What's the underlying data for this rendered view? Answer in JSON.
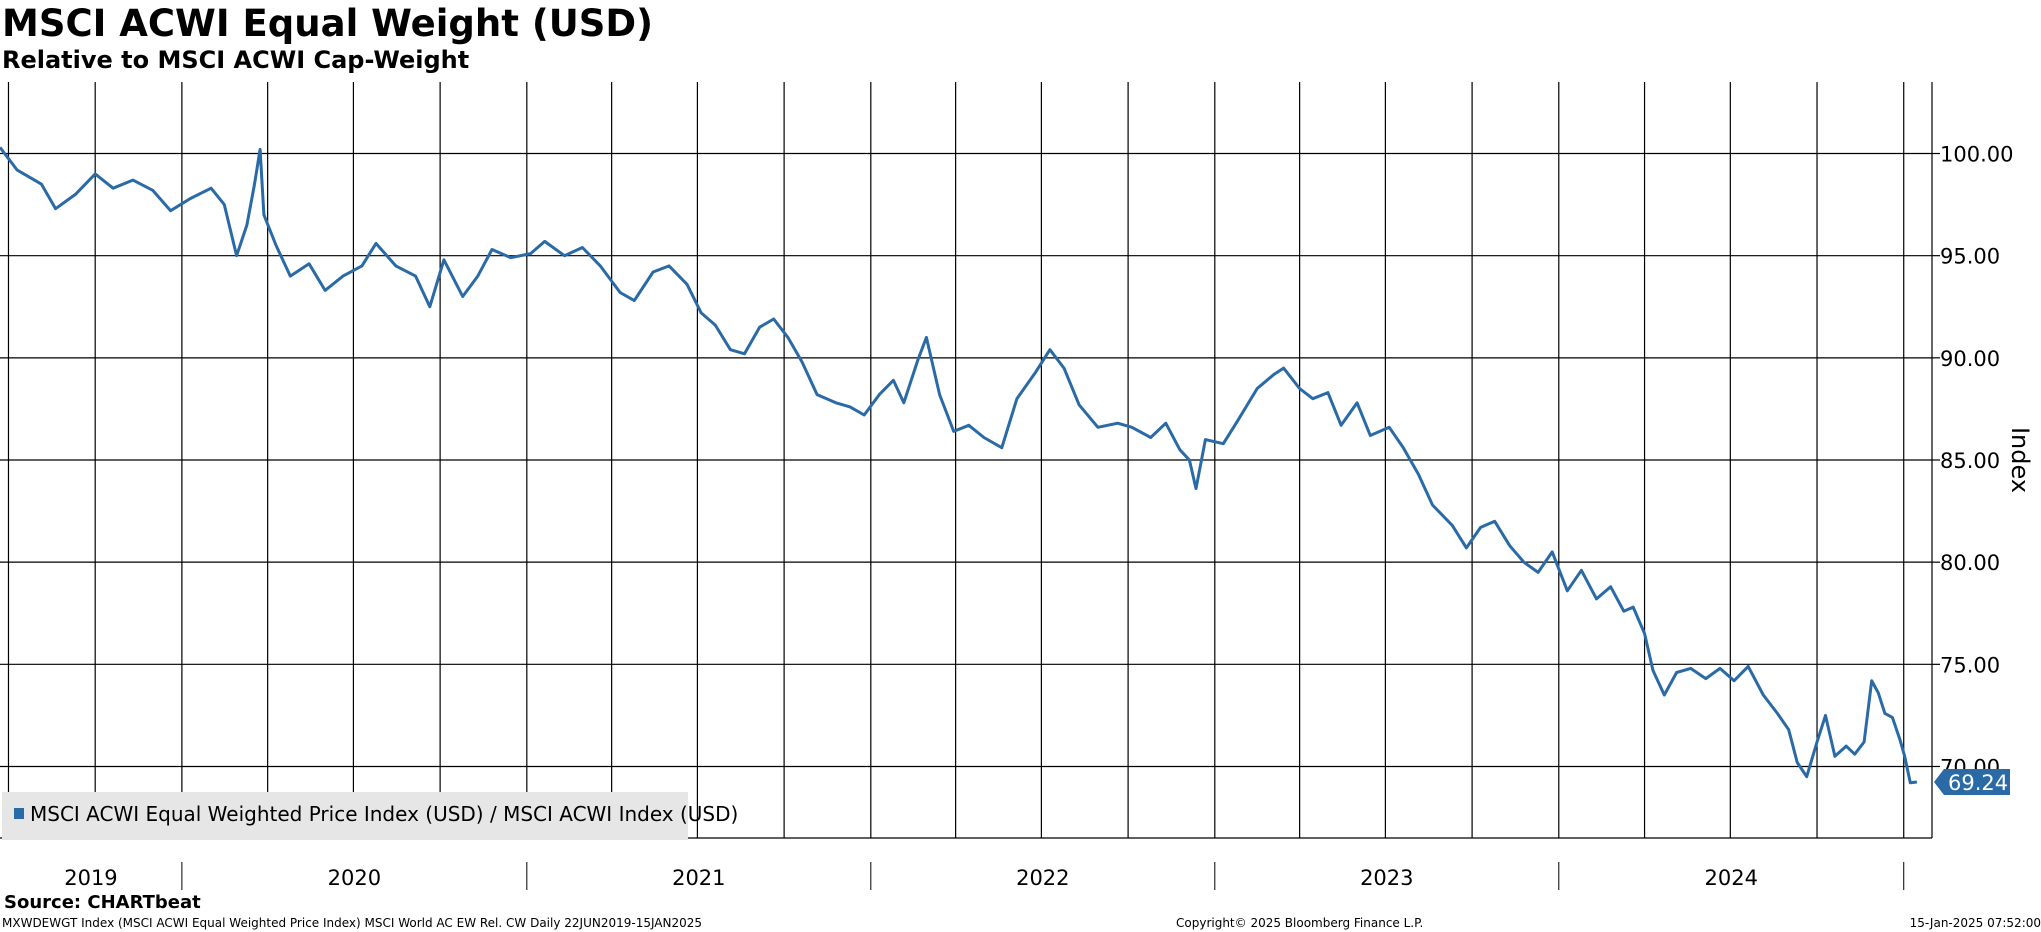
{
  "header": {
    "title": "MSCI ACWI Equal Weight (USD)",
    "subtitle": "Relative to MSCI ACWI Cap-Weight"
  },
  "footer": {
    "source": "Source: CHARTbeat",
    "ticker_info": "MXWDEWGT Index (MSCI ACWI Equal Weighted Price Index) MSCI World AC EW Rel. CW  Daily 22JUN2019-15JAN2025",
    "copyright": "Copyright© 2025 Bloomberg Finance L.P.",
    "timestamp": "15-Jan-2025 07:52:00"
  },
  "colors": {
    "series": "#2a6aa6",
    "grid": "#000000",
    "legend_bg": "#e6e6e6"
  },
  "chart_data": {
    "type": "line",
    "title": "MSCI ACWI Equal Weight (USD)",
    "subtitle": "Relative to MSCI ACWI Cap-Weight",
    "ylabel": "Index",
    "ylim": [
      66.5,
      103.5
    ],
    "yticks": [
      70,
      75,
      80,
      85,
      90,
      95,
      100
    ],
    "ytick_labels": [
      "70.00",
      "75.00",
      "80.00",
      "85.00",
      "90.00",
      "95.00",
      "100.00"
    ],
    "xlim": [
      "2019-06-22",
      "2025-01-31"
    ],
    "x_year_labels": [
      "2019",
      "2020",
      "2021",
      "2022",
      "2023",
      "2024"
    ],
    "grid": true,
    "legend_position": "bottom-left",
    "last_value_label": "69.24",
    "series": [
      {
        "name": "MSCI ACWI Equal Weighted Price Index (USD) / MSCI ACWI Index (USD)",
        "points": [
          [
            "2019-06-22",
            100.3
          ],
          [
            "2019-07-10",
            99.2
          ],
          [
            "2019-08-05",
            98.5
          ],
          [
            "2019-08-20",
            97.3
          ],
          [
            "2019-09-10",
            98.0
          ],
          [
            "2019-10-01",
            99.0
          ],
          [
            "2019-10-20",
            98.3
          ],
          [
            "2019-11-10",
            98.7
          ],
          [
            "2019-12-01",
            98.2
          ],
          [
            "2019-12-20",
            97.2
          ],
          [
            "2020-01-10",
            97.8
          ],
          [
            "2020-02-01",
            98.3
          ],
          [
            "2020-02-15",
            97.5
          ],
          [
            "2020-02-28",
            95.0
          ],
          [
            "2020-03-10",
            96.5
          ],
          [
            "2020-03-18",
            98.5
          ],
          [
            "2020-03-24",
            100.2
          ],
          [
            "2020-03-28",
            97.0
          ],
          [
            "2020-04-10",
            95.5
          ],
          [
            "2020-04-25",
            94.0
          ],
          [
            "2020-05-15",
            94.6
          ],
          [
            "2020-06-01",
            93.3
          ],
          [
            "2020-06-20",
            94.0
          ],
          [
            "2020-07-10",
            94.5
          ],
          [
            "2020-07-25",
            95.6
          ],
          [
            "2020-08-15",
            94.5
          ],
          [
            "2020-09-05",
            94.0
          ],
          [
            "2020-09-20",
            92.5
          ],
          [
            "2020-10-05",
            94.8
          ],
          [
            "2020-10-25",
            93.0
          ],
          [
            "2020-11-10",
            94.0
          ],
          [
            "2020-11-25",
            95.3
          ],
          [
            "2020-12-15",
            94.9
          ],
          [
            "2021-01-05",
            95.1
          ],
          [
            "2021-01-20",
            95.7
          ],
          [
            "2021-02-10",
            95.0
          ],
          [
            "2021-03-01",
            95.4
          ],
          [
            "2021-03-20",
            94.5
          ],
          [
            "2021-04-10",
            93.2
          ],
          [
            "2021-04-25",
            92.8
          ],
          [
            "2021-05-15",
            94.2
          ],
          [
            "2021-06-01",
            94.5
          ],
          [
            "2021-06-20",
            93.6
          ],
          [
            "2021-07-05",
            92.2
          ],
          [
            "2021-07-20",
            91.6
          ],
          [
            "2021-08-05",
            90.4
          ],
          [
            "2021-08-20",
            90.2
          ],
          [
            "2021-09-05",
            91.5
          ],
          [
            "2021-09-20",
            91.9
          ],
          [
            "2021-10-05",
            91.0
          ],
          [
            "2021-10-20",
            89.8
          ],
          [
            "2021-11-05",
            88.2
          ],
          [
            "2021-11-25",
            87.8
          ],
          [
            "2021-12-10",
            87.6
          ],
          [
            "2021-12-25",
            87.2
          ],
          [
            "2022-01-10",
            88.2
          ],
          [
            "2022-01-25",
            88.9
          ],
          [
            "2022-02-05",
            87.8
          ],
          [
            "2022-02-20",
            89.9
          ],
          [
            "2022-03-01",
            91.0
          ],
          [
            "2022-03-15",
            88.2
          ],
          [
            "2022-03-30",
            86.4
          ],
          [
            "2022-04-15",
            86.7
          ],
          [
            "2022-05-01",
            86.1
          ],
          [
            "2022-05-20",
            85.6
          ],
          [
            "2022-06-05",
            88.0
          ],
          [
            "2022-06-25",
            89.3
          ],
          [
            "2022-07-10",
            90.4
          ],
          [
            "2022-07-25",
            89.5
          ],
          [
            "2022-08-10",
            87.7
          ],
          [
            "2022-08-30",
            86.6
          ],
          [
            "2022-09-20",
            86.8
          ],
          [
            "2022-10-05",
            86.6
          ],
          [
            "2022-10-25",
            86.1
          ],
          [
            "2022-11-10",
            86.8
          ],
          [
            "2022-11-25",
            85.5
          ],
          [
            "2022-12-05",
            85.0
          ],
          [
            "2022-12-12",
            83.6
          ],
          [
            "2022-12-22",
            86.0
          ],
          [
            "2023-01-10",
            85.8
          ],
          [
            "2023-01-25",
            86.9
          ],
          [
            "2023-02-15",
            88.5
          ],
          [
            "2023-03-05",
            89.2
          ],
          [
            "2023-03-15",
            89.5
          ],
          [
            "2023-04-01",
            88.5
          ],
          [
            "2023-04-15",
            88.0
          ],
          [
            "2023-05-01",
            88.3
          ],
          [
            "2023-05-15",
            86.7
          ],
          [
            "2023-06-01",
            87.8
          ],
          [
            "2023-06-15",
            86.2
          ],
          [
            "2023-07-05",
            86.6
          ],
          [
            "2023-07-20",
            85.6
          ],
          [
            "2023-08-05",
            84.3
          ],
          [
            "2023-08-20",
            82.8
          ],
          [
            "2023-09-10",
            81.8
          ],
          [
            "2023-09-25",
            80.7
          ],
          [
            "2023-10-10",
            81.7
          ],
          [
            "2023-10-25",
            82.0
          ],
          [
            "2023-11-10",
            80.8
          ],
          [
            "2023-11-25",
            80.0
          ],
          [
            "2023-12-10",
            79.5
          ],
          [
            "2023-12-25",
            80.5
          ],
          [
            "2024-01-10",
            78.6
          ],
          [
            "2024-01-25",
            79.6
          ],
          [
            "2024-02-10",
            78.2
          ],
          [
            "2024-02-25",
            78.8
          ],
          [
            "2024-03-10",
            77.6
          ],
          [
            "2024-03-20",
            77.8
          ],
          [
            "2024-04-01",
            76.5
          ],
          [
            "2024-04-10",
            74.7
          ],
          [
            "2024-04-22",
            73.5
          ],
          [
            "2024-05-05",
            74.6
          ],
          [
            "2024-05-20",
            74.8
          ],
          [
            "2024-06-05",
            74.3
          ],
          [
            "2024-06-20",
            74.8
          ],
          [
            "2024-07-05",
            74.2
          ],
          [
            "2024-07-20",
            74.9
          ],
          [
            "2024-08-05",
            73.5
          ],
          [
            "2024-08-20",
            72.6
          ],
          [
            "2024-09-01",
            71.8
          ],
          [
            "2024-09-10",
            70.2
          ],
          [
            "2024-09-20",
            69.5
          ],
          [
            "2024-10-01",
            71.2
          ],
          [
            "2024-10-10",
            72.5
          ],
          [
            "2024-10-20",
            70.5
          ],
          [
            "2024-11-01",
            71.0
          ],
          [
            "2024-11-10",
            70.6
          ],
          [
            "2024-11-20",
            71.2
          ],
          [
            "2024-11-28",
            74.2
          ],
          [
            "2024-12-05",
            73.6
          ],
          [
            "2024-12-12",
            72.6
          ],
          [
            "2024-12-20",
            72.4
          ],
          [
            "2024-12-28",
            71.3
          ],
          [
            "2025-01-02",
            70.5
          ],
          [
            "2025-01-08",
            69.2
          ],
          [
            "2025-01-15",
            69.24
          ]
        ]
      }
    ]
  }
}
